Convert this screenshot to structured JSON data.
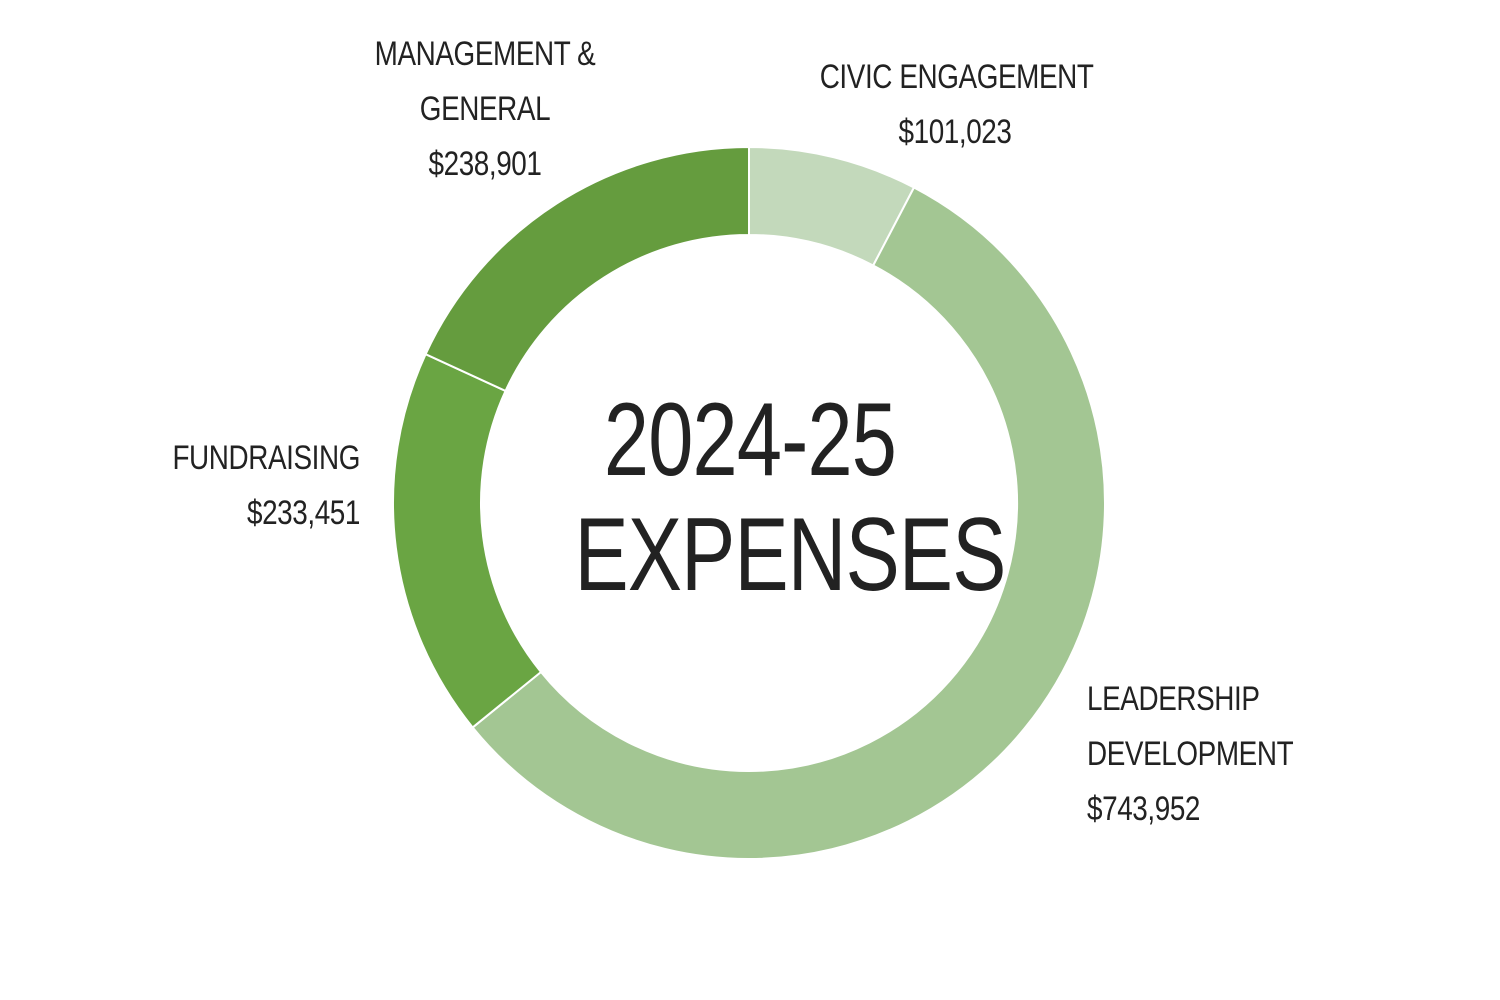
{
  "chart_data": {
    "type": "pie",
    "title_line1": "2024-25",
    "title_line2": "EXPENSES",
    "slices": [
      {
        "label_lines": [
          "CIVIC ENGAGEMENT"
        ],
        "value": 101023,
        "value_label": "$101,023",
        "color": "#c3d9bb"
      },
      {
        "label_lines": [
          "LEADERSHIP",
          "DEVELOPMENT"
        ],
        "value": 743952,
        "value_label": "$743,952",
        "color": "#a3c693"
      },
      {
        "label_lines": [
          "FUNDRAISING"
        ],
        "value": 233451,
        "value_label": "$233,451",
        "color": "#6aa543"
      },
      {
        "label_lines": [
          "MANAGEMENT &",
          "GENERAL"
        ],
        "value": 238901,
        "value_label": "$238,901",
        "color": "#659c3e"
      }
    ]
  }
}
